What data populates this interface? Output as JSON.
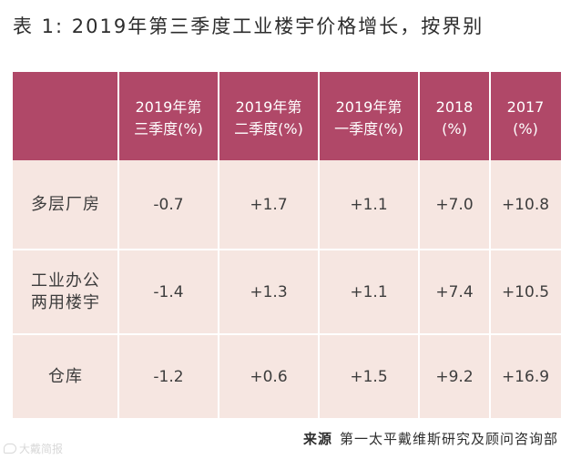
{
  "title": "表 1: 2019年第三季度工业楼宇价格增长，按界别",
  "table": {
    "headers": [
      "",
      "2019年第\n三季度(%)",
      "2019年第\n二季度(%)",
      "2019年第\n一季度(%)",
      "2018\n(%)",
      "2017\n(%)"
    ],
    "rows": [
      {
        "label": "多层厂房",
        "values": [
          "-0.7",
          "+1.7",
          "+1.1",
          "+7.0",
          "+10.8"
        ]
      },
      {
        "label": "工业办公\n两用楼宇",
        "values": [
          "-1.4",
          "+1.3",
          "+1.1",
          "+7.4",
          "+10.5"
        ]
      },
      {
        "label": "仓库",
        "values": [
          "-1.2",
          "+0.6",
          "+1.5",
          "+9.2",
          "+16.9"
        ]
      }
    ]
  },
  "source": {
    "lead": "来源",
    "text": "第一太平戴维斯研究及顾问咨询部"
  },
  "watermark": {
    "text": "大戴简报",
    "icon": "chat-bubble-icon"
  },
  "colors": {
    "header_bg": "#b04868",
    "body_bg": "#f6e6e1"
  }
}
